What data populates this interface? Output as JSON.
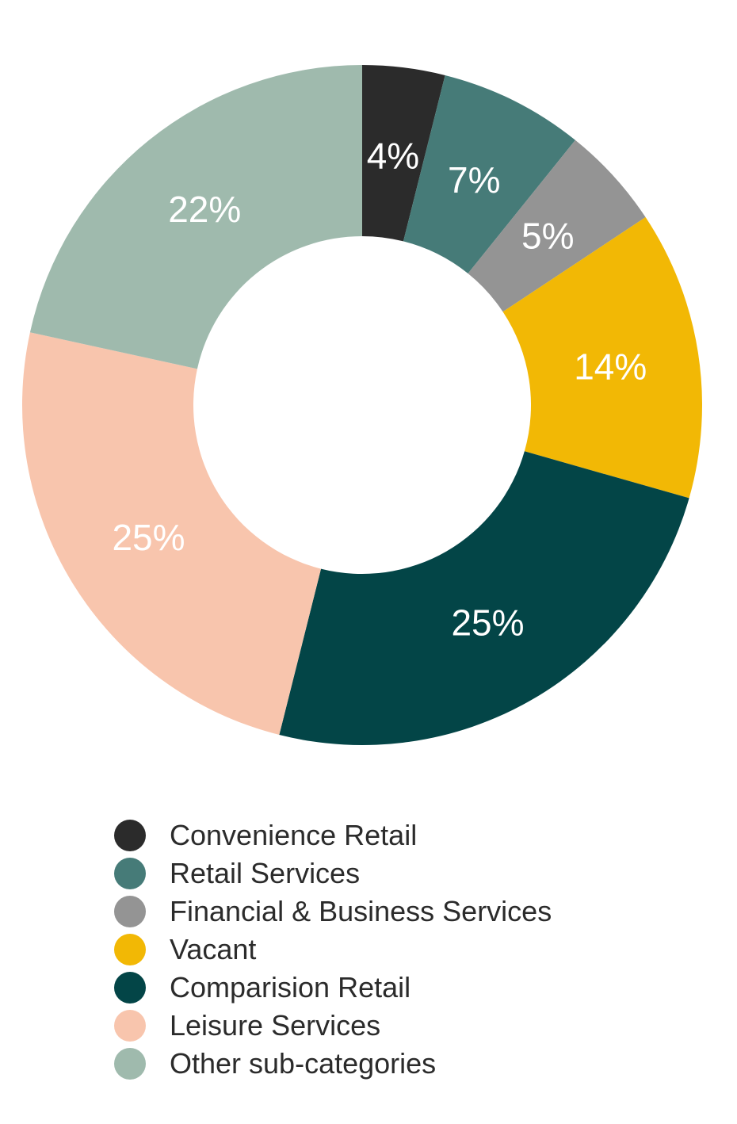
{
  "chart_data": {
    "type": "pie",
    "donut": true,
    "title": "",
    "legend_position": "bottom",
    "slices": [
      {
        "name": "Convenience Retail",
        "value": 4,
        "label": "4%",
        "color": "#2b2b2b"
      },
      {
        "name": "Retail Services",
        "value": 7,
        "label": "7%",
        "color": "#467b78"
      },
      {
        "name": "Financial & Business Services",
        "value": 5,
        "label": "5%",
        "color": "#949494"
      },
      {
        "name": "Vacant",
        "value": 14,
        "label": "14%",
        "color": "#f2b805"
      },
      {
        "name": "Comparision Retail",
        "value": 25,
        "label": "25%",
        "color": "#034547"
      },
      {
        "name": "Leisure Services",
        "value": 25,
        "label": "25%",
        "color": "#f8c5ad"
      },
      {
        "name": "Other sub-categories",
        "value": 22,
        "label": "22%",
        "color": "#9fbaad"
      }
    ]
  }
}
